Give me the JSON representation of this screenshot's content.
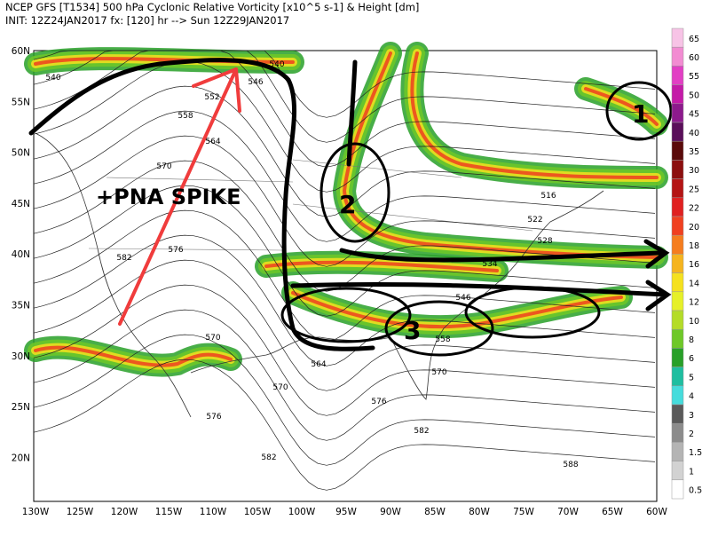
{
  "header": {
    "line1": "NCEP GFS [T1534] 500 hPa Cyclonic Relative Vorticity [x10^5 s-1] & Height [dm]",
    "line2": "INIT: 12Z24JAN2017 fx: [120] hr --> Sun 12Z29JAN2017"
  },
  "lat_labels": [
    "60N",
    "55N",
    "50N",
    "45N",
    "40N",
    "35N",
    "30N",
    "25N",
    "20N"
  ],
  "lon_labels": [
    "130W",
    "125W",
    "120W",
    "115W",
    "110W",
    "105W",
    "100W",
    "95W",
    "90W",
    "85W",
    "80W",
    "75W",
    "70W",
    "65W",
    "60W"
  ],
  "colorbar": {
    "labels": [
      "65",
      "60",
      "55",
      "50",
      "45",
      "40",
      "35",
      "30",
      "25",
      "22",
      "20",
      "18",
      "16",
      "14",
      "12",
      "10",
      "8",
      "6",
      "5",
      "4",
      "3",
      "2",
      "1.5",
      "1",
      "0.5"
    ],
    "colors": [
      "#f7c3e6",
      "#f28cd2",
      "#e23fc4",
      "#c41aa8",
      "#8c1a8c",
      "#5a0f5a",
      "#5a0a0a",
      "#8c0f0f",
      "#b41414",
      "#e02020",
      "#f04020",
      "#f57d1e",
      "#f5b41e",
      "#f5e11e",
      "#e6f028",
      "#b4dc28",
      "#6ec828",
      "#28a028",
      "#1ebea0",
      "#46dcdc",
      "#5a5a5a",
      "#8c8c8c",
      "#b4b4b4",
      "#d2d2d2",
      "#ffffff"
    ]
  },
  "contour_labels": [
    "540",
    "546",
    "552",
    "558",
    "564",
    "570",
    "576",
    "582",
    "540",
    "516",
    "522",
    "528",
    "534",
    "546",
    "558",
    "564",
    "570",
    "570",
    "570",
    "576",
    "576",
    "582",
    "582",
    "588"
  ],
  "annotations": {
    "pna": "+PNA SPIKE",
    "marks": [
      "1",
      "2",
      "3"
    ]
  }
}
